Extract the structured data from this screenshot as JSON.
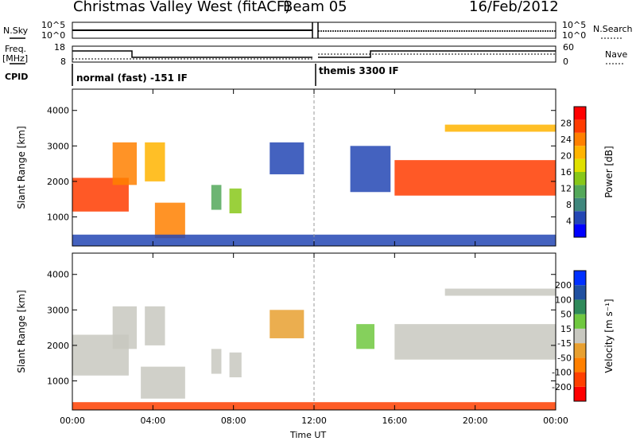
{
  "header": {
    "title": "Christmas Valley West (fitACF)",
    "beam": "Beam 05",
    "date": "16/Feb/2012"
  },
  "left_labels": {
    "nsky": "N.Sky",
    "freq_line1": "Freq.",
    "freq_line2": "[MHz]",
    "cpid": "CPID"
  },
  "right_labels": {
    "nsearch": "N.Search",
    "nave": "Nave"
  },
  "strip_ticks": {
    "noise_left_top": "10^5",
    "noise_left_bottom": "10^0",
    "noise_right_top": "10^5",
    "noise_right_bottom": "10^0",
    "freq_top": "18",
    "freq_bottom": "8",
    "nave_top": "60",
    "nave_bottom": "0"
  },
  "cpid_labels": [
    "normal (fast) -151 IF",
    "themis 3300 IF"
  ],
  "x_axis_label": "Time UT",
  "colors": {
    "power": [
      "#0000ff",
      "#2346b4",
      "#40877d",
      "#54a85a",
      "#88c81a",
      "#e0e000",
      "#ffb400",
      "#ff8000",
      "#ff3c00",
      "#ff0000"
    ],
    "velocity_scale": [
      "#ff0000",
      "#ff4000",
      "#ff8000",
      "#e8a030",
      "#c8c8c0",
      "#70c840",
      "#2f8a5a",
      "#2050a0",
      "#0030ff"
    ],
    "velocity_cloud": "#c8c8c0"
  },
  "chart_data": [
    {
      "type": "heatmap",
      "name": "power",
      "ylabel": "Slant Range [km]",
      "xlabel": "Time UT",
      "x_ticks": [
        "00:00",
        "04:00",
        "08:00",
        "12:00",
        "16:00",
        "20:00",
        "00:00"
      ],
      "xlim": [
        0,
        24
      ],
      "y_ticks": [
        1000,
        2000,
        3000,
        4000
      ],
      "ylim": [
        180,
        4600
      ],
      "colorbar_label": "Power [dB]",
      "colorbar_ticks": [
        4,
        8,
        12,
        16,
        20,
        24,
        28
      ],
      "colorbar_range": [
        0,
        32
      ],
      "regions": [
        {
          "x0": 0.0,
          "x1": 2.8,
          "y0": 1150,
          "y1": 2100,
          "v": 26
        },
        {
          "x0": 2.0,
          "x1": 3.2,
          "y0": 1900,
          "y1": 3100,
          "v": 24
        },
        {
          "x0": 3.6,
          "x1": 4.6,
          "y0": 2000,
          "y1": 3100,
          "v": 22
        },
        {
          "x0": 4.1,
          "x1": 5.6,
          "y0": 400,
          "y1": 1400,
          "v": 25
        },
        {
          "x0": 6.9,
          "x1": 7.4,
          "y0": 1200,
          "y1": 1900,
          "v": 12
        },
        {
          "x0": 7.8,
          "x1": 8.4,
          "y0": 1100,
          "y1": 1800,
          "v": 13
        },
        {
          "x0": 9.8,
          "x1": 11.5,
          "y0": 2200,
          "y1": 3100,
          "v": 6
        },
        {
          "x0": 13.8,
          "x1": 15.8,
          "y0": 1700,
          "y1": 3000,
          "v": 5
        },
        {
          "x0": 16.0,
          "x1": 24.0,
          "y0": 1600,
          "y1": 2600,
          "v": 27
        },
        {
          "x0": 18.5,
          "x1": 24.0,
          "y0": 3400,
          "y1": 3600,
          "v": 22
        },
        {
          "x0": 0.0,
          "x1": 24.0,
          "y0": 180,
          "y1": 500,
          "v": 6
        }
      ]
    },
    {
      "type": "heatmap",
      "name": "velocity",
      "ylabel": "Slant Range [km]",
      "xlabel": "Time UT",
      "x_ticks": [
        "00:00",
        "04:00",
        "08:00",
        "12:00",
        "16:00",
        "20:00",
        "00:00"
      ],
      "xlim": [
        0,
        24
      ],
      "y_ticks": [
        1000,
        2000,
        3000,
        4000
      ],
      "ylim": [
        180,
        4600
      ],
      "colorbar_label": "Velocity [m s⁻¹]",
      "colorbar_ticks": [
        "-200",
        "-100",
        "-50",
        "-15",
        "15",
        "50",
        "100",
        "200"
      ],
      "regions": [
        {
          "x0": 0.0,
          "x1": 2.8,
          "y0": 1150,
          "y1": 2300,
          "v": 0
        },
        {
          "x0": 2.0,
          "x1": 3.2,
          "y0": 1900,
          "y1": 3100,
          "v": 0
        },
        {
          "x0": 3.6,
          "x1": 4.6,
          "y0": 2000,
          "y1": 3100,
          "v": 0
        },
        {
          "x0": 3.4,
          "x1": 5.6,
          "y0": 500,
          "y1": 1400,
          "v": 0
        },
        {
          "x0": 6.9,
          "x1": 7.4,
          "y0": 1200,
          "y1": 1900,
          "v": 0
        },
        {
          "x0": 7.8,
          "x1": 8.4,
          "y0": 1100,
          "y1": 1800,
          "v": 0
        },
        {
          "x0": 9.8,
          "x1": 11.5,
          "y0": 2200,
          "y1": 3000,
          "v": -40
        },
        {
          "x0": 14.1,
          "x1": 15.0,
          "y0": 1900,
          "y1": 2600,
          "v": 40
        },
        {
          "x0": 16.0,
          "x1": 24.0,
          "y0": 1600,
          "y1": 2600,
          "v": 0
        },
        {
          "x0": 18.5,
          "x1": 24.0,
          "y0": 3400,
          "y1": 3600,
          "v": 0
        },
        {
          "x0": 0.0,
          "x1": 24.0,
          "y0": 180,
          "y1": 400,
          "v": -70
        }
      ]
    }
  ]
}
